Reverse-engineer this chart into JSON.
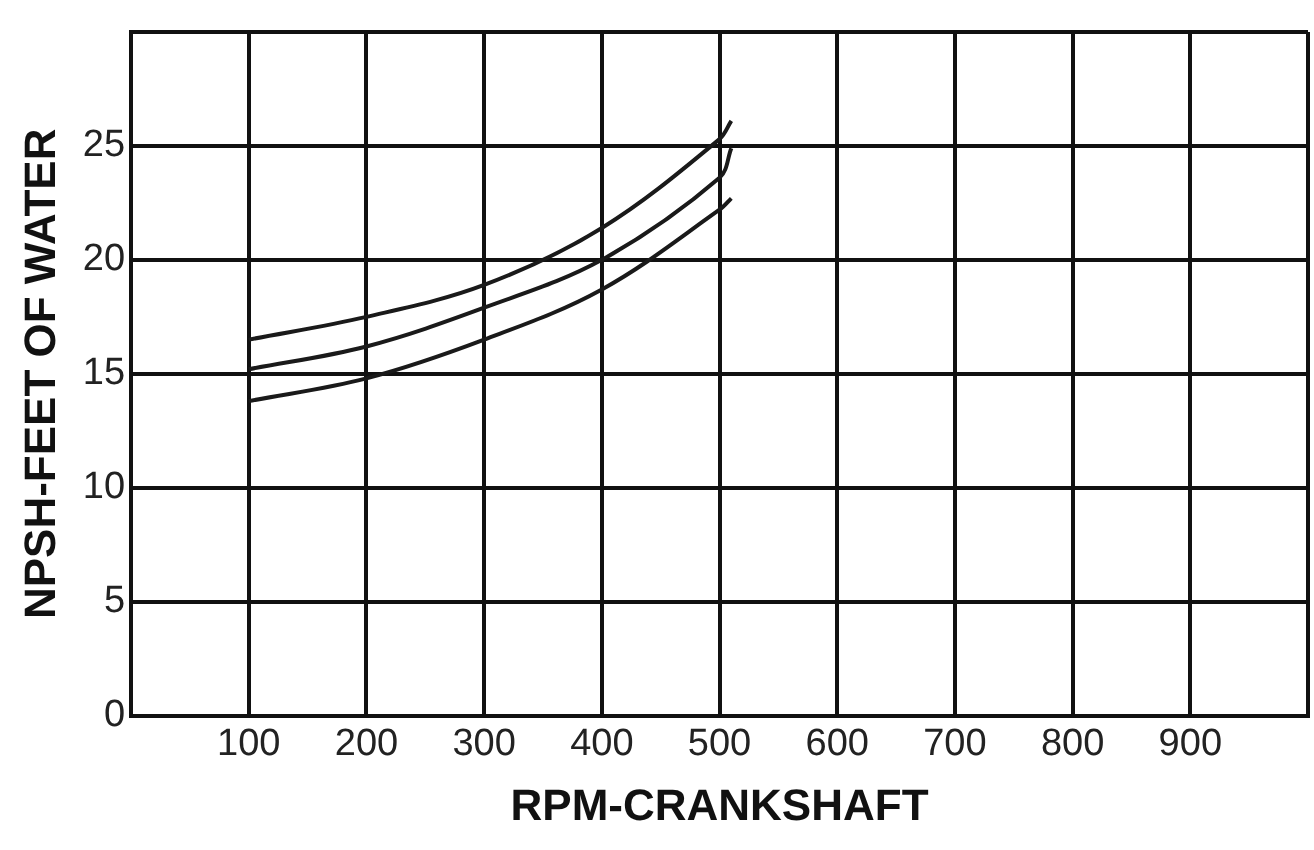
{
  "chart_data": {
    "type": "line",
    "xlabel": "RPM-CRANKSHAFT",
    "ylabel": "NPSH-FEET OF WATER",
    "xlim": [
      0,
      1000
    ],
    "xticks": [
      {
        "value": 0,
        "label": null
      },
      100,
      200,
      300,
      400,
      500,
      600,
      700,
      800,
      900,
      {
        "value": 1000,
        "label": null
      }
    ],
    "ylim": [
      0,
      30
    ],
    "yticks": [
      0,
      5,
      10,
      15,
      20,
      25,
      {
        "value": 30,
        "label": null
      }
    ],
    "grid": true,
    "marker": "none",
    "line_style": "solid",
    "series": [
      {
        "color": "#1a1a1a",
        "x": [
          100,
          200,
          300,
          400,
          500,
          510
        ],
        "values": [
          16.5,
          17.5,
          18.9,
          21.4,
          25.3,
          26.1
        ]
      },
      {
        "color": "#1a1a1a",
        "x": [
          100,
          200,
          300,
          400,
          500,
          510
        ],
        "values": [
          15.2,
          16.2,
          17.9,
          20.0,
          23.6,
          24.9
        ]
      },
      {
        "color": "#1a1a1a",
        "x": [
          100,
          200,
          300,
          400,
          500,
          510
        ],
        "values": [
          13.8,
          14.8,
          16.5,
          18.7,
          22.2,
          22.7
        ]
      }
    ]
  }
}
